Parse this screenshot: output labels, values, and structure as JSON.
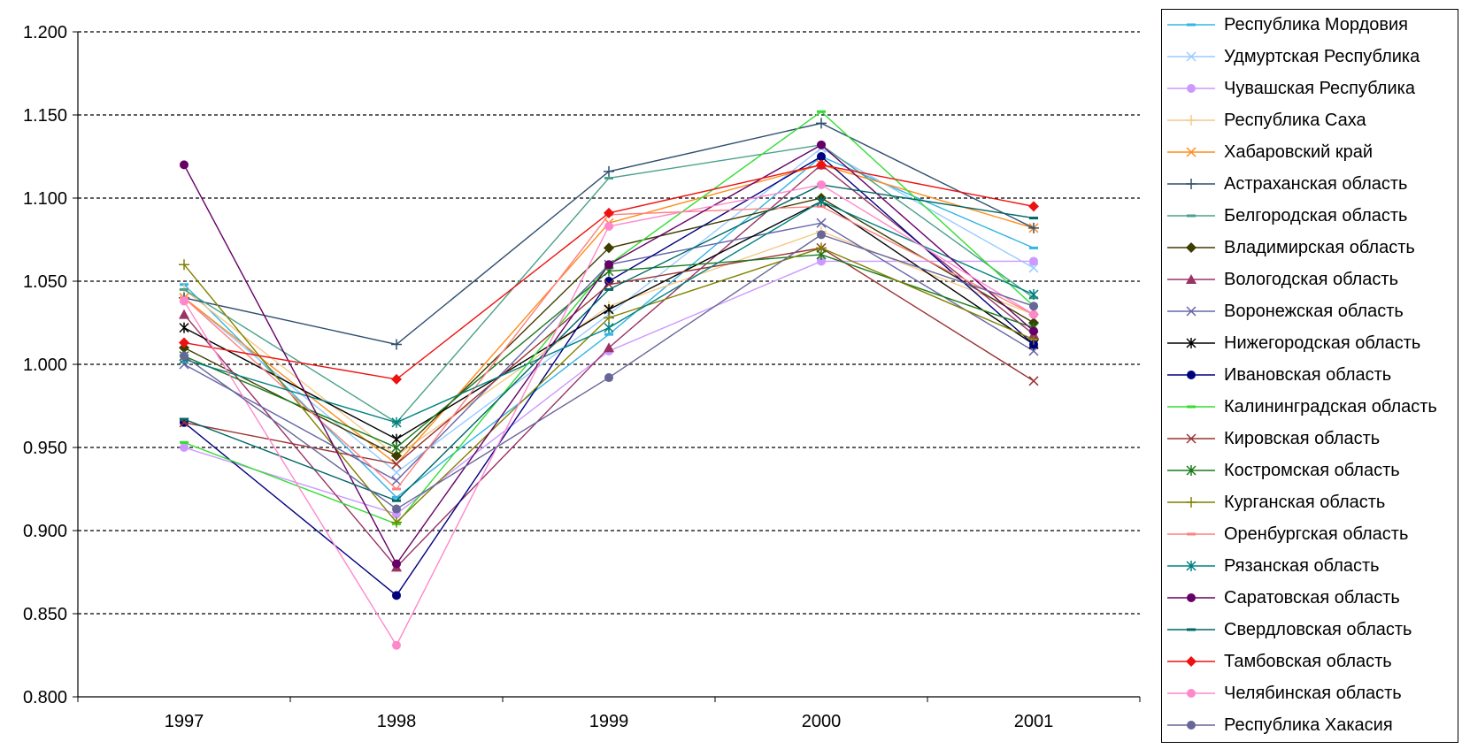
{
  "chart_data": {
    "type": "line",
    "title": "",
    "xlabel": "",
    "ylabel": "",
    "categories": [
      "1997",
      "1998",
      "1999",
      "2000",
      "2001"
    ],
    "ylim": [
      0.8,
      1.2
    ],
    "yticks": [
      "0.800",
      "0.850",
      "0.900",
      "0.950",
      "1.000",
      "1.050",
      "1.100",
      "1.150",
      "1.200"
    ],
    "grid": "horizontal dashed",
    "legend_position": "right",
    "series": [
      {
        "name": "Республика Мордовия",
        "color": "#33b5e5",
        "marker": "dash",
        "values": [
          1.048,
          0.92,
          1.018,
          1.125,
          1.07
        ]
      },
      {
        "name": "Удмуртская Республика",
        "color": "#99ccff",
        "marker": "x",
        "values": [
          1.04,
          0.935,
          1.03,
          1.13,
          1.058
        ]
      },
      {
        "name": "Чувашская Республика",
        "color": "#cc99ff",
        "marker": "circle",
        "values": [
          0.95,
          0.91,
          1.008,
          1.062,
          1.062
        ]
      },
      {
        "name": "Республика Саха",
        "color": "#f5c98a",
        "marker": "plus",
        "values": [
          1.045,
          0.945,
          1.035,
          1.08,
          1.03
        ]
      },
      {
        "name": "Хабаровский край",
        "color": "#ff8c1a",
        "marker": "x",
        "values": [
          1.04,
          0.94,
          1.085,
          1.12,
          1.082
        ]
      },
      {
        "name": "Астраханская область",
        "color": "#2f4f6f",
        "marker": "plus",
        "values": [
          1.04,
          1.012,
          1.116,
          1.145,
          1.082
        ]
      },
      {
        "name": "Белгородская область",
        "color": "#4aa08a",
        "marker": "dash",
        "values": [
          1.045,
          0.965,
          1.112,
          1.132,
          1.04
        ]
      },
      {
        "name": "Владимирская область",
        "color": "#3d3d00",
        "marker": "diamond",
        "values": [
          1.01,
          0.945,
          1.07,
          1.1,
          1.025
        ]
      },
      {
        "name": "Вологодская область",
        "color": "#993366",
        "marker": "triangle",
        "values": [
          1.03,
          0.878,
          1.01,
          1.12,
          1.018
        ]
      },
      {
        "name": "Воронежская область",
        "color": "#6666aa",
        "marker": "x",
        "values": [
          1.0,
          0.93,
          1.06,
          1.085,
          1.008
        ]
      },
      {
        "name": "Нижегородская область",
        "color": "#000000",
        "marker": "star",
        "values": [
          1.022,
          0.955,
          1.033,
          1.098,
          1.012
        ]
      },
      {
        "name": "Ивановская область",
        "color": "#000080",
        "marker": "circle",
        "values": [
          0.965,
          0.861,
          1.05,
          1.125,
          1.012
        ]
      },
      {
        "name": "Калининградская область",
        "color": "#33dd33",
        "marker": "dash",
        "values": [
          0.953,
          0.904,
          1.06,
          1.152,
          1.035
        ]
      },
      {
        "name": "Кировская область",
        "color": "#993333",
        "marker": "x",
        "values": [
          0.965,
          0.94,
          1.048,
          1.07,
          0.99
        ]
      },
      {
        "name": "Костромская область",
        "color": "#1a7a1a",
        "marker": "star",
        "values": [
          1.005,
          0.95,
          1.056,
          1.066,
          1.022
        ]
      },
      {
        "name": "Курганская область",
        "color": "#808000",
        "marker": "plus",
        "values": [
          1.06,
          0.905,
          1.028,
          1.07,
          1.015
        ]
      },
      {
        "name": "Оренбургская область",
        "color": "#ff8080",
        "marker": "dash",
        "values": [
          1.04,
          0.925,
          1.09,
          1.095,
          1.03
        ]
      },
      {
        "name": "Рязанская область",
        "color": "#008080",
        "marker": "star",
        "values": [
          1.003,
          0.965,
          1.022,
          1.098,
          1.042
        ]
      },
      {
        "name": "Саратовская область",
        "color": "#660066",
        "marker": "circle",
        "values": [
          1.12,
          0.88,
          1.06,
          1.132,
          1.02
        ]
      },
      {
        "name": "Свердловская область",
        "color": "#006666",
        "marker": "dash",
        "values": [
          0.967,
          0.918,
          1.045,
          1.108,
          1.088
        ]
      },
      {
        "name": "Тамбовская область",
        "color": "#ee1111",
        "marker": "diamond",
        "values": [
          1.013,
          0.991,
          1.091,
          1.12,
          1.095
        ]
      },
      {
        "name": "Челябинская область",
        "color": "#ff88cc",
        "marker": "circle",
        "values": [
          1.038,
          0.831,
          1.083,
          1.108,
          1.03
        ]
      },
      {
        "name": "Республика Хакасия",
        "color": "#666699",
        "marker": "circle",
        "values": [
          1.005,
          0.913,
          0.992,
          1.078,
          1.035
        ]
      }
    ]
  }
}
